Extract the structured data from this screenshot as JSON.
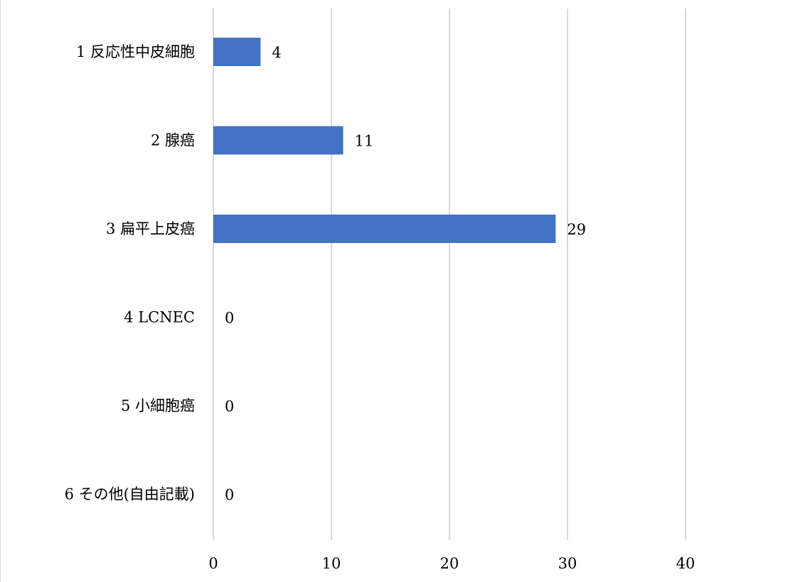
{
  "chart_data": {
    "type": "bar",
    "orientation": "horizontal",
    "title": "",
    "xlabel": "",
    "ylabel": "",
    "categories": [
      "1 反応性中皮細胞",
      "2  腺癌",
      "3  扁平上皮癌",
      "4  LCNEC",
      "5 小細胞癌",
      "6  その他(自由記載)"
    ],
    "values": [
      4,
      11,
      29,
      0,
      0,
      0
    ],
    "xlim": [
      0,
      48
    ],
    "xticks": [
      0,
      10,
      20,
      30,
      40
    ],
    "data_labels": true,
    "grid": "vertical",
    "legend": "none",
    "bar_color": "#4472C4",
    "grid_color": "#d9d9d9"
  }
}
